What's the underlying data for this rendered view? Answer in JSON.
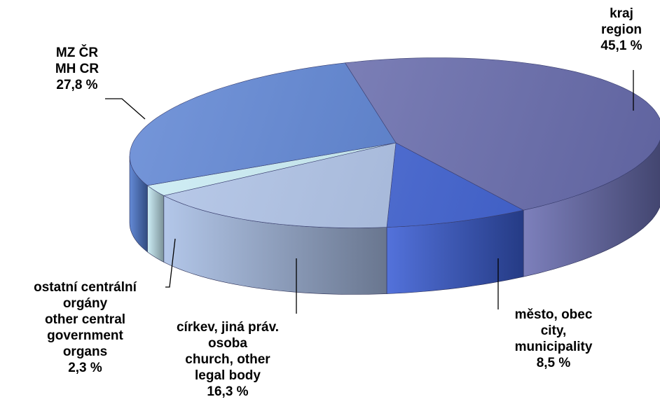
{
  "chart_data": {
    "type": "pie",
    "style": "3d",
    "slices": [
      {
        "name": "kraj region",
        "lines": [
          "kraj",
          "region"
        ],
        "value": 45.1,
        "label": "45,1 %",
        "color": "#6b6fb3"
      },
      {
        "name": "město, obec city, municipality",
        "lines": [
          "město, obec",
          "city,",
          "municipality"
        ],
        "value": 8.5,
        "label": "8,5 %",
        "color": "#3b5fd6"
      },
      {
        "name": "církev, jiná práv. osoba church, other legal body",
        "lines": [
          "církev, jiná práv.",
          "osoba",
          "church, other",
          "legal body"
        ],
        "value": 16.3,
        "label": "16,3 %",
        "color": "#a9bfe6"
      },
      {
        "name": "ostatní centrální orgány other central government organs",
        "lines": [
          "ostatní centrální",
          "orgány",
          "other central",
          "government",
          "organs"
        ],
        "value": 2.3,
        "label": "2,3 %",
        "color": "#c6ecf5"
      },
      {
        "name": "MZ ČR MH CR",
        "lines": [
          "MZ ČR",
          "MH CR"
        ],
        "value": 27.8,
        "label": "27,8 %",
        "color": "#4f7ad0"
      }
    ]
  }
}
